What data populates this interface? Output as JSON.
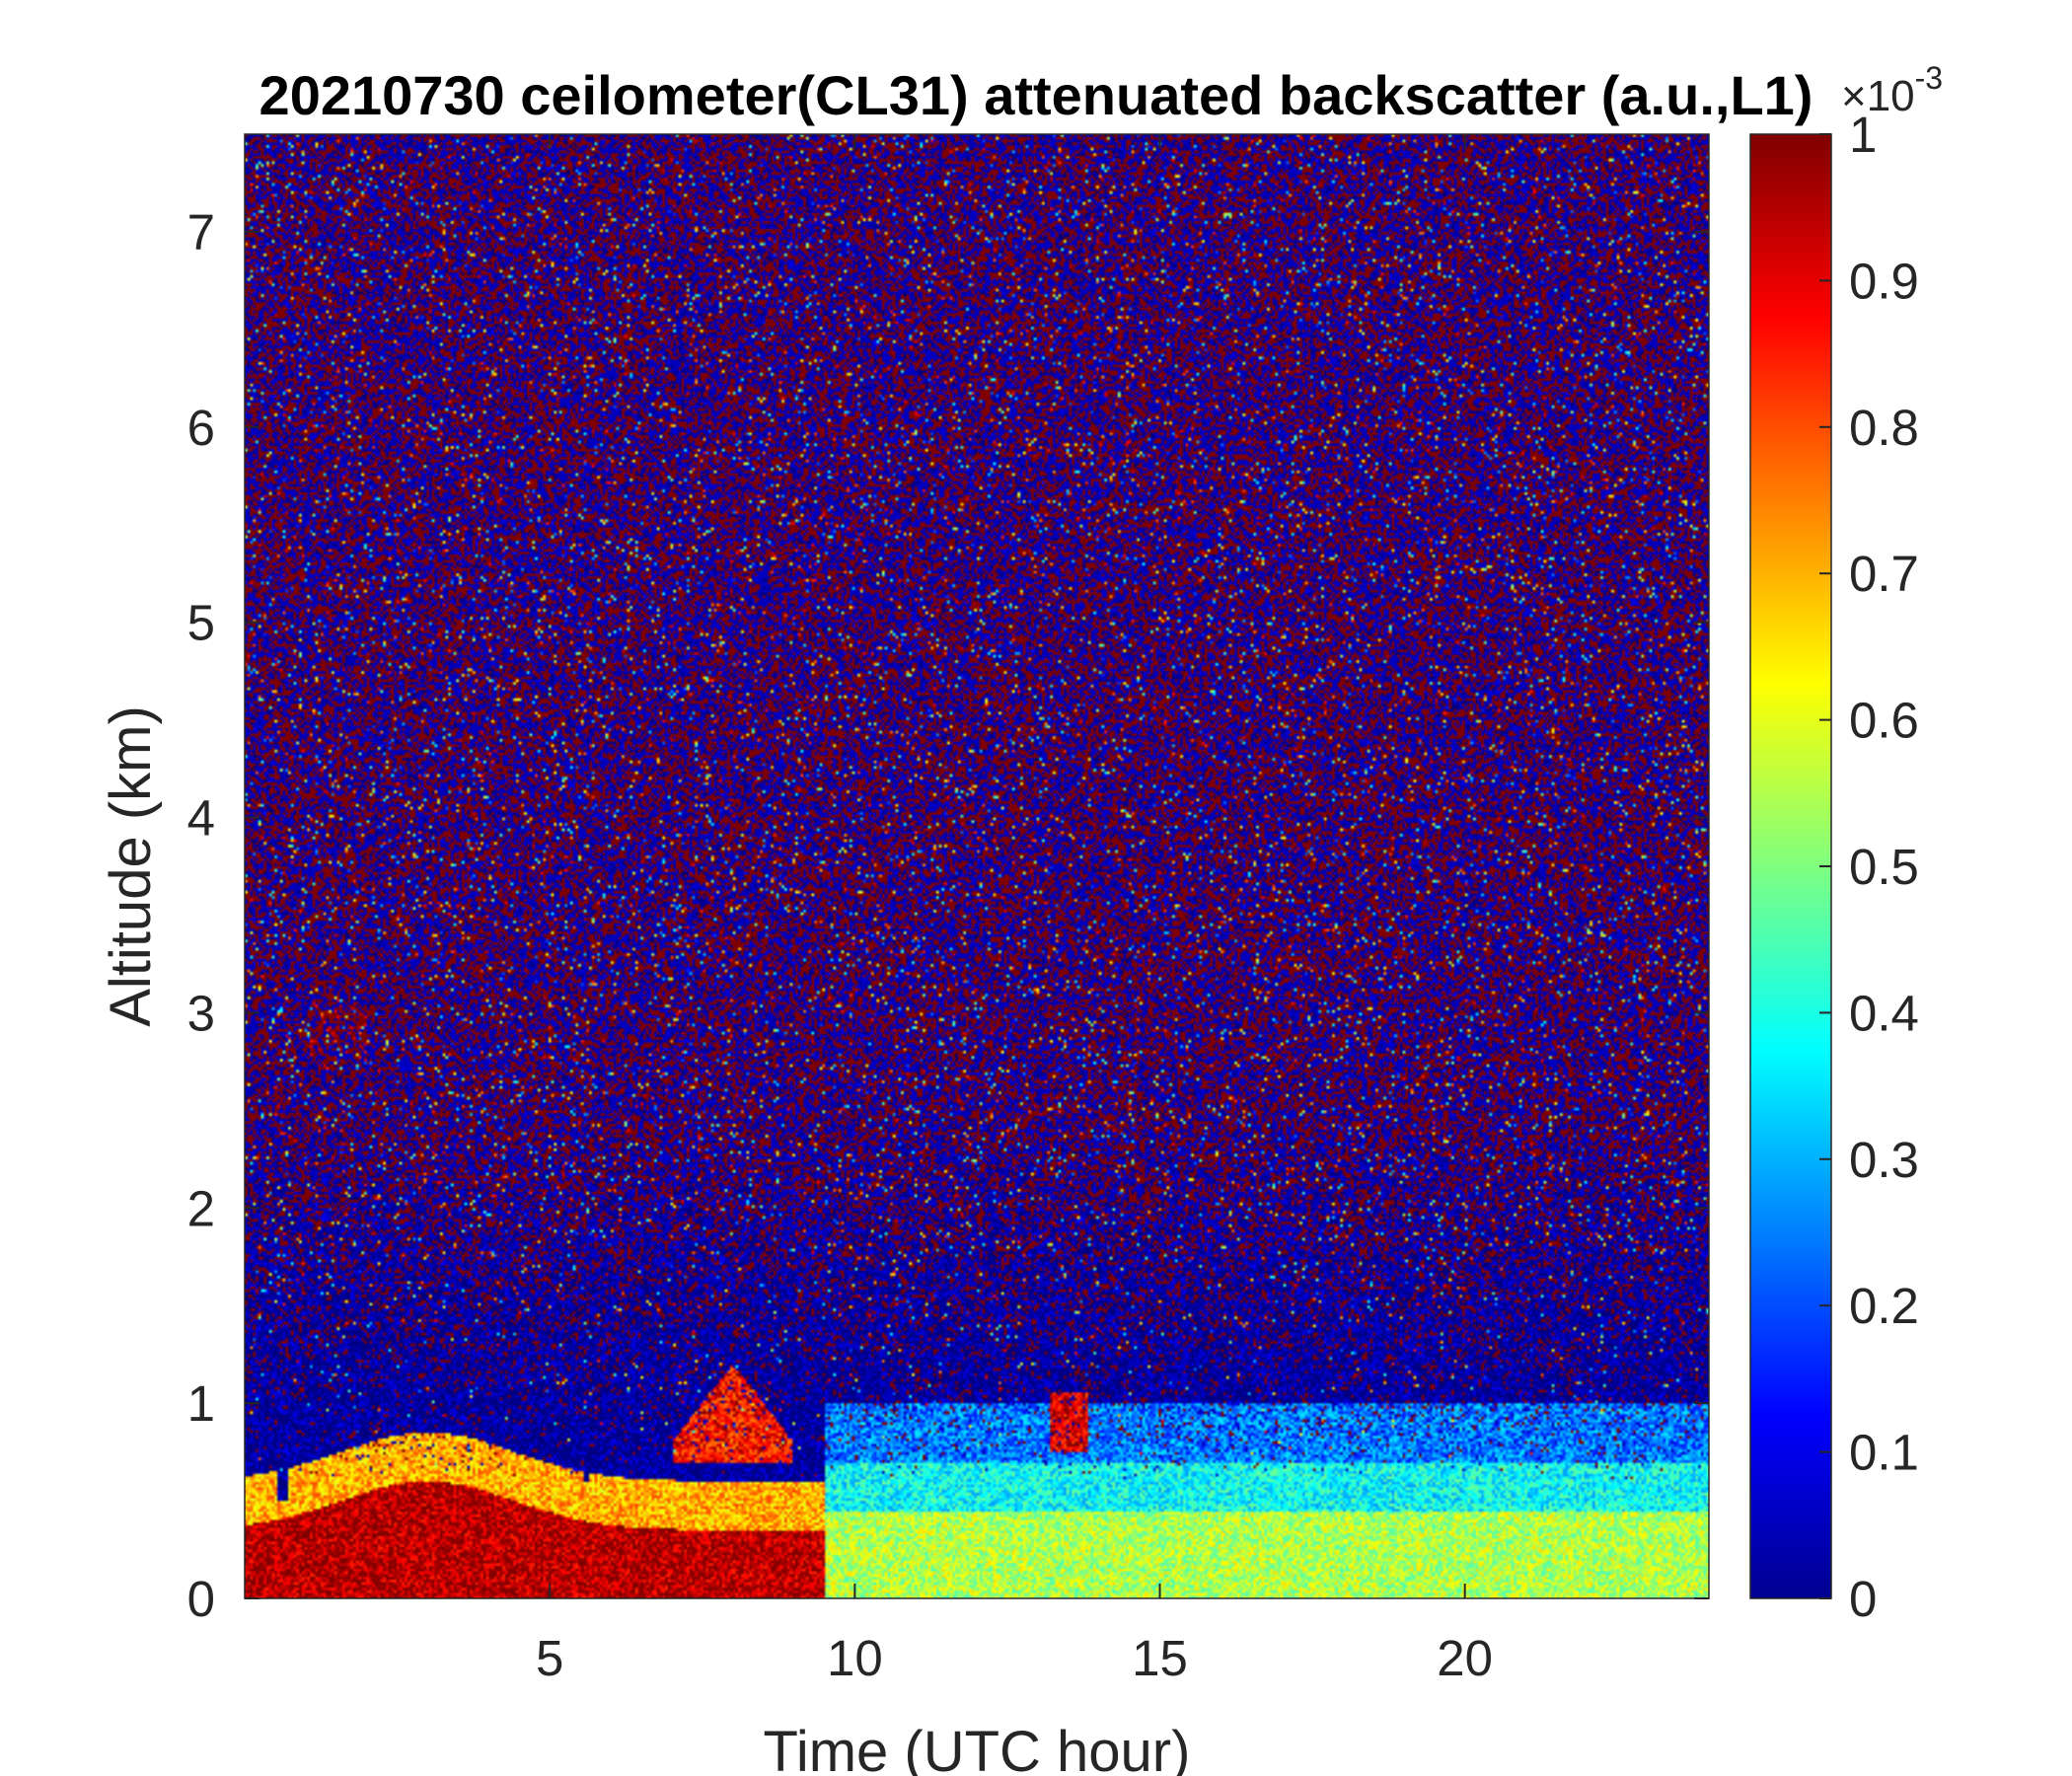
{
  "chart_data": {
    "type": "heatmap",
    "title": "20210730 ceilometer(CL31) attenuated backscatter (a.u.,L1)",
    "xlabel": "Time (UTC hour)",
    "ylabel": "Altitude (km)",
    "xlim": [
      0,
      24
    ],
    "ylim": [
      0,
      7.5
    ],
    "xticks": [
      "5",
      "10",
      "15",
      "20"
    ],
    "yticks": [
      "0",
      "1",
      "2",
      "3",
      "4",
      "5",
      "6",
      "7"
    ],
    "colorbar": {
      "colormap": "jet",
      "clim": [
        0,
        1
      ],
      "exponent_label": "×10",
      "exponent_power": "-3",
      "ticks": [
        "0",
        "0.1",
        "0.2",
        "0.3",
        "0.4",
        "0.5",
        "0.6",
        "0.7",
        "0.8",
        "0.9",
        "1"
      ]
    },
    "features": [
      {
        "description": "strong boundary-layer aerosol/fog (saturated)",
        "time_range": [
          0,
          9.5
        ],
        "altitude_range": [
          0,
          0.5
        ]
      },
      {
        "description": "elevated aerosol layer",
        "time_range": [
          1,
          2
        ],
        "altitude_range": [
          2.75,
          3.05
        ]
      },
      {
        "description": "aerosol layer dome",
        "time_range": [
          7,
          9
        ],
        "altitude_range": [
          0.7,
          1.2
        ]
      },
      {
        "description": "residual/mixed layer",
        "time_range": [
          9.5,
          24
        ],
        "altitude_range": [
          0,
          0.7
        ]
      },
      {
        "description": "noise region",
        "time_range": [
          0,
          24
        ],
        "altitude_range": [
          1.5,
          7.5
        ]
      }
    ]
  }
}
